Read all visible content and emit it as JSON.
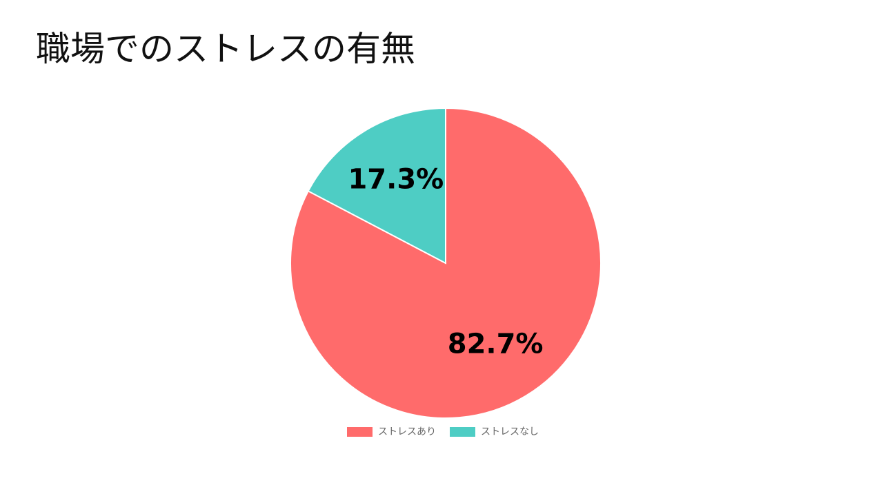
{
  "chart_data": {
    "type": "pie",
    "title": "職場でのストレスの有無",
    "categories": [
      "ストレスあり",
      "ストレスなし"
    ],
    "values": [
      82.7,
      17.3
    ],
    "value_labels": [
      "82.7%",
      "17.3%"
    ],
    "colors": [
      "#ff6b6b",
      "#4ecdc4"
    ]
  }
}
